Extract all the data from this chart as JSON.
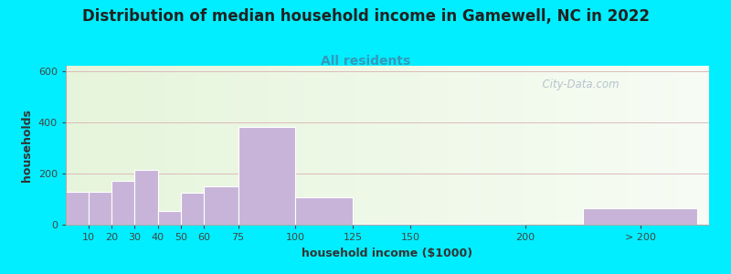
{
  "title": "Distribution of median household income in Gamewell, NC in 2022",
  "subtitle": "All residents",
  "xlabel": "household income ($1000)",
  "ylabel": "households",
  "bar_labels": [
    "10",
    "20",
    "30",
    "40",
    "50",
    "60",
    "75",
    "100",
    "125",
    "150",
    "200",
    "> 200"
  ],
  "bar_values": [
    130,
    130,
    170,
    215,
    55,
    125,
    148,
    380,
    108,
    5,
    5,
    63
  ],
  "bar_color": "#c8b4d8",
  "ylim": [
    0,
    620
  ],
  "yticks": [
    0,
    200,
    400,
    600
  ],
  "background_outer": "#00eeff",
  "background_inner": "#f5f8ee",
  "grid_color": "#ddbbbb",
  "title_fontsize": 12,
  "subtitle_fontsize": 10,
  "subtitle_color": "#3399bb",
  "axis_label_fontsize": 9,
  "tick_fontsize": 8,
  "watermark_text": "  City-Data.com",
  "watermark_color": "#aabac8",
  "title_color": "#222222"
}
